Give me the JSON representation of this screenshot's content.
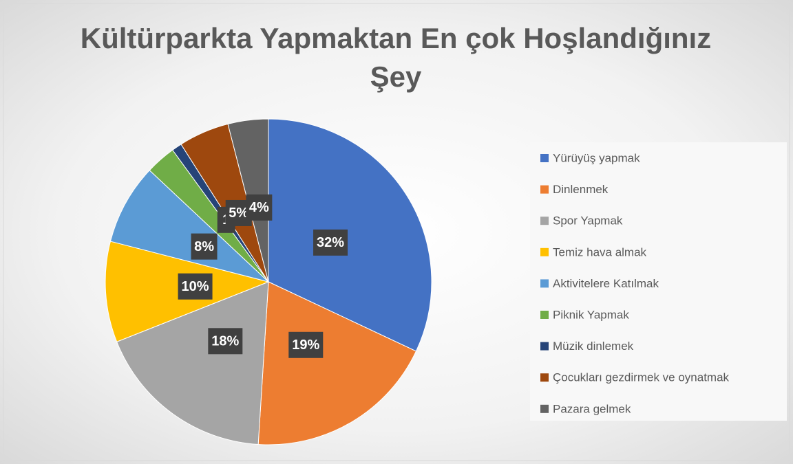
{
  "chart_data": {
    "type": "pie",
    "title": "Kültürparkta Yapmaktan En çok Hoşlandığınız Şey",
    "categories": [
      "Yürüyüş yapmak",
      "Dinlenmek",
      "Spor Yapmak",
      "Temiz hava almak",
      "Aktivitelere Katılmak",
      "Piknik Yapmak",
      "Müzik dinlemek",
      "Çocukları gezdirmek ve oynatmak",
      "Pazara gelmek"
    ],
    "values": [
      32,
      19,
      18,
      10,
      8,
      3,
      1,
      5,
      4
    ],
    "value_labels": [
      "32%",
      "19%",
      "18%",
      "10%",
      "8%",
      null,
      "1",
      "5%",
      "4%"
    ],
    "colors": [
      "#4472c4",
      "#ed7d31",
      "#a5a5a5",
      "#ffc000",
      "#5b9bd5",
      "#70ad47",
      "#264478",
      "#9e480e",
      "#636363"
    ],
    "legend": "right"
  }
}
